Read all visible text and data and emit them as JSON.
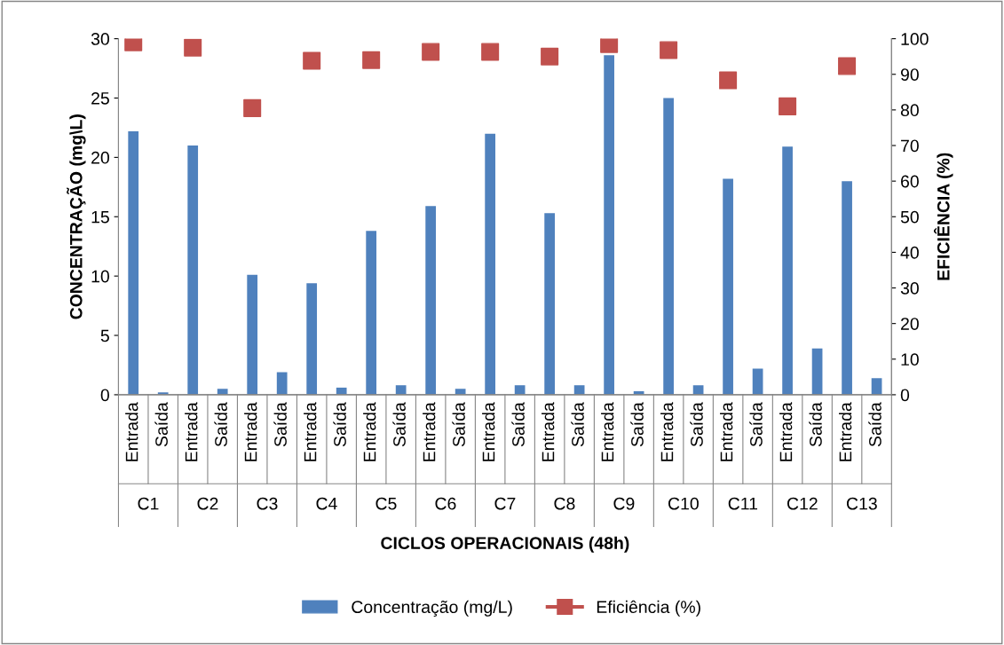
{
  "chart_data": {
    "type": "bar",
    "xlabel": "CICLOS OPERACIONAIS (48h)",
    "ylabel": "CONCENTRAÇÃO (mg\\L)",
    "y2label": "EFICIÊNCIA (%)",
    "categories": [
      "Entrada",
      "Saída",
      "Entrada",
      "Saída",
      "Entrada",
      "Saída",
      "Entrada",
      "Saída",
      "Entrada",
      "Saída",
      "Entrada",
      "Saída",
      "Entrada",
      "Saída",
      "Entrada",
      "Saída",
      "Entrada",
      "Saída",
      "Entrada",
      "Saída",
      "Entrada",
      "Saída",
      "Entrada",
      "Saída",
      "Entrada",
      "Saída"
    ],
    "annotations": [
      "C1",
      "C2",
      "C3",
      "C4",
      "C5",
      "C6",
      "C7",
      "C8",
      "C9",
      "C10",
      "C11",
      "C12",
      "C13"
    ],
    "series": [
      {
        "name": "Concentração (mg/L)",
        "color": "#4f81bd",
        "values": [
          22.2,
          0.2,
          21.0,
          0.5,
          10.1,
          1.9,
          9.4,
          0.6,
          13.8,
          0.8,
          15.9,
          0.5,
          22.0,
          0.8,
          15.3,
          0.8,
          28.6,
          0.3,
          25.0,
          0.8,
          18.2,
          2.2,
          20.9,
          3.9,
          18.0,
          1.4
        ]
      },
      {
        "name": "Eficiência (%)",
        "type": "scatter",
        "axis": "y2",
        "marker": "square",
        "color": "#c0504d",
        "values": [
          99,
          null,
          97.5,
          null,
          80.5,
          null,
          93.8,
          null,
          94,
          null,
          96.3,
          null,
          96.3,
          null,
          95,
          null,
          98.5,
          null,
          96.8,
          null,
          88.3,
          null,
          81,
          null,
          92.3,
          null
        ]
      }
    ],
    "ylim": [
      0,
      30
    ],
    "yticks": [
      0,
      5,
      10,
      15,
      20,
      25,
      30
    ],
    "y2lim": [
      0,
      100
    ],
    "y2ticks": [
      0,
      10,
      20,
      30,
      40,
      50,
      60,
      70,
      80,
      90,
      100
    ],
    "grid": false,
    "legend": "bottom"
  }
}
